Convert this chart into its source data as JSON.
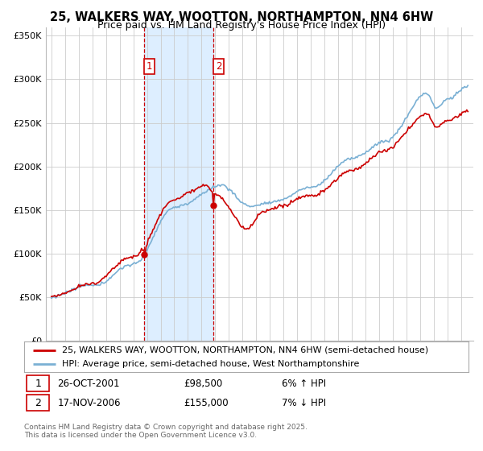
{
  "title": "25, WALKERS WAY, WOOTTON, NORTHAMPTON, NN4 6HW",
  "subtitle": "Price paid vs. HM Land Registry's House Price Index (HPI)",
  "yticks": [
    0,
    50000,
    100000,
    150000,
    200000,
    250000,
    300000,
    350000
  ],
  "ytick_labels": [
    "£0",
    "£50K",
    "£100K",
    "£150K",
    "£200K",
    "£250K",
    "£300K",
    "£350K"
  ],
  "ylim": [
    0,
    360000
  ],
  "year_start": 1995,
  "year_end": 2025,
  "purchase1_year": 2001.82,
  "purchase1_price": 98500,
  "purchase2_year": 2006.88,
  "purchase2_price": 155000,
  "legend_property": "25, WALKERS WAY, WOOTTON, NORTHAMPTON, NN4 6HW (semi-detached house)",
  "legend_hpi": "HPI: Average price, semi-detached house, West Northamptonshire",
  "footer1": "Contains HM Land Registry data © Crown copyright and database right 2025.",
  "footer2": "This data is licensed under the Open Government Licence v3.0.",
  "property_color": "#cc0000",
  "hpi_color": "#7ab0d4",
  "shading_color": "#ddeeff",
  "vline_color": "#cc0000",
  "background_color": "#ffffff",
  "grid_color": "#cccccc",
  "title_fontsize": 10.5,
  "subtitle_fontsize": 9,
  "tick_fontsize": 8,
  "legend_fontsize": 8
}
